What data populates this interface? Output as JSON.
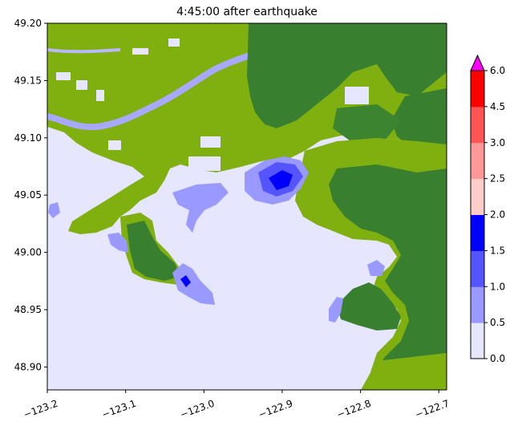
{
  "title": "4:45:00 after earthquake",
  "chart_data": {
    "type": "heatmap",
    "title": "4:45:00 after earthquake",
    "xlabel": "",
    "ylabel": "",
    "xlim": [
      -123.2,
      -122.69
    ],
    "ylim": [
      48.88,
      49.2
    ],
    "xticks": [
      -123.2,
      -123.1,
      -123.0,
      -122.9,
      -122.8,
      -122.7
    ],
    "xtick_labels": [
      "−123.2",
      "−123.1",
      "−123.0",
      "−122.9",
      "−122.8",
      "−122.7"
    ],
    "yticks": [
      48.9,
      48.95,
      49.0,
      49.05,
      49.1,
      49.15,
      49.2
    ],
    "ytick_labels": [
      "48.90",
      "48.95",
      "49.00",
      "49.05",
      "49.10",
      "49.15",
      "49.20"
    ],
    "colorbar": {
      "levels": [
        0.0,
        0.5,
        1.0,
        1.5,
        2.0,
        2.5,
        3.0,
        4.5,
        6.0
      ],
      "labels": [
        "0.0",
        "0.5",
        "1.0",
        "1.5",
        "2.0",
        "2.5",
        "3.0",
        "4.5",
        "6.0"
      ],
      "colors": [
        "#e6e6ff",
        "#9999ff",
        "#5555ff",
        "#0000ff",
        "#ffcccc",
        "#ff9999",
        "#ff5555",
        "#ff0000"
      ],
      "extend_color": "#ff00ff",
      "extend": "max"
    },
    "colors": {
      "water_dry": "#e6e6ff",
      "land_low": "#80b010",
      "land_high": "#388030"
    }
  }
}
